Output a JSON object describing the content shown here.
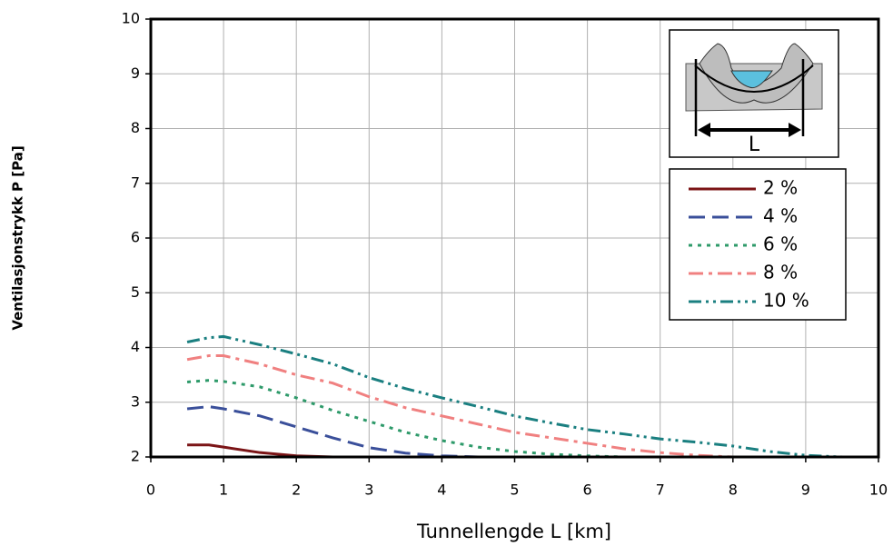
{
  "chart_data": {
    "type": "line",
    "x_label": "Tunnellengde L [km]",
    "y_label": "Ventilasjonstrykk P [Pa]",
    "inset_label": "L",
    "x": [
      0.5,
      0.8,
      1,
      1.5,
      2,
      2.5,
      3,
      3.5,
      4,
      4.5,
      5,
      5.5,
      6,
      6.5,
      7,
      7.5,
      8,
      8.5,
      9,
      9.5,
      10
    ],
    "series": [
      {
        "name": "2 %",
        "color": "#7b1416",
        "dash": "solid",
        "values": [
          2.22,
          2.22,
          2.18,
          2.08,
          2.02,
          2,
          2,
          2,
          2,
          2,
          2,
          2,
          2,
          2,
          2,
          2,
          2,
          2,
          2,
          2,
          2
        ]
      },
      {
        "name": "4 %",
        "color": "#3a4f9a",
        "dash": "dashed",
        "values": [
          2.88,
          2.92,
          2.88,
          2.75,
          2.55,
          2.35,
          2.17,
          2.07,
          2.02,
          2,
          2,
          2,
          2,
          2,
          2,
          2,
          2,
          2,
          2,
          2,
          2
        ]
      },
      {
        "name": "6 %",
        "color": "#2e9a6a",
        "dash": "dotted",
        "values": [
          3.37,
          3.4,
          3.38,
          3.28,
          3.08,
          2.85,
          2.65,
          2.45,
          2.3,
          2.18,
          2.1,
          2.05,
          2.02,
          2,
          2,
          2,
          2,
          2,
          2,
          2,
          2
        ]
      },
      {
        "name": "8 %",
        "color": "#f08080",
        "dash": "dashdot",
        "values": [
          3.78,
          3.85,
          3.85,
          3.7,
          3.5,
          3.35,
          3.1,
          2.9,
          2.75,
          2.6,
          2.45,
          2.35,
          2.25,
          2.15,
          2.08,
          2.03,
          2,
          2,
          2,
          2,
          2
        ]
      },
      {
        "name": "10 %",
        "color": "#1a7f80",
        "dash": "dashdotdot",
        "values": [
          4.1,
          4.18,
          4.2,
          4.05,
          3.88,
          3.7,
          3.45,
          3.25,
          3.08,
          2.92,
          2.75,
          2.62,
          2.5,
          2.42,
          2.33,
          2.27,
          2.2,
          2.1,
          2.03,
          2,
          2
        ]
      }
    ],
    "xlim": [
      0,
      10
    ],
    "ylim": [
      2,
      10
    ],
    "xticks": [
      0,
      1,
      2,
      3,
      4,
      5,
      6,
      7,
      8,
      9,
      10
    ],
    "yticks": [
      2,
      3,
      4,
      5,
      6,
      7,
      8,
      9,
      10
    ],
    "grid": true
  }
}
